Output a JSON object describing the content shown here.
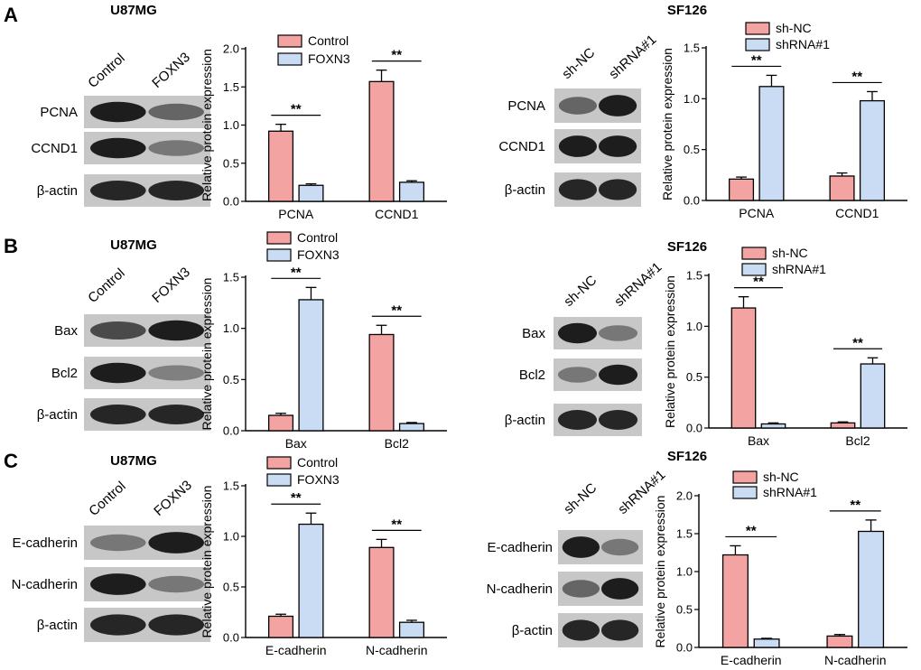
{
  "colors": {
    "series_a": "#f4a3a3",
    "series_b": "#c9dcf3",
    "stroke": "#000000"
  },
  "rows": [
    {
      "letter": "A",
      "left": {
        "cell_line": "U87MG",
        "blot": {
          "lanes": [
            "Control",
            "FOXN3"
          ],
          "proteins": [
            "PCNA",
            "CCND1",
            "β-actin"
          ]
        },
        "chart_data": {
          "type": "bar",
          "categories": [
            "PCNA",
            "CCND1"
          ],
          "series": [
            {
              "name": "Control",
              "values": [
                0.92,
                1.57
              ],
              "errors": [
                0.09,
                0.15
              ]
            },
            {
              "name": "FOXN3",
              "values": [
                0.21,
                0.25
              ],
              "errors": [
                0.02,
                0.02
              ]
            }
          ],
          "significance": [
            "**",
            "**"
          ],
          "ylabel": "Relative protein expression",
          "ylim": [
            0,
            2.0
          ],
          "yticks": [
            "0.0",
            "0.5",
            "1.0",
            "1.5",
            "2.0"
          ]
        }
      },
      "right": {
        "cell_line": "SF126",
        "blot": {
          "lanes": [
            "sh-NC",
            "shRNA#1"
          ],
          "proteins": [
            "PCNA",
            "CCND1",
            "β-actin"
          ]
        },
        "chart_data": {
          "type": "bar",
          "categories": [
            "PCNA",
            "CCND1"
          ],
          "series": [
            {
              "name": "sh-NC",
              "values": [
                0.21,
                0.24
              ],
              "errors": [
                0.02,
                0.03
              ]
            },
            {
              "name": "shRNA#1",
              "values": [
                1.12,
                0.98
              ],
              "errors": [
                0.11,
                0.09
              ]
            }
          ],
          "significance": [
            "**",
            "**"
          ],
          "ylabel": "Relative protein expression",
          "ylim": [
            0,
            1.5
          ],
          "yticks": [
            "0.0",
            "0.5",
            "1.0",
            "1.5"
          ]
        }
      }
    },
    {
      "letter": "B",
      "left": {
        "cell_line": "U87MG",
        "blot": {
          "lanes": [
            "Control",
            "FOXN3"
          ],
          "proteins": [
            "Bax",
            "Bcl2",
            "β-actin"
          ]
        },
        "chart_data": {
          "type": "bar",
          "categories": [
            "Bax",
            "Bcl2"
          ],
          "series": [
            {
              "name": "Control",
              "values": [
                0.15,
                0.94
              ],
              "errors": [
                0.02,
                0.09
              ]
            },
            {
              "name": "FOXN3",
              "values": [
                1.28,
                0.07
              ],
              "errors": [
                0.12,
                0.01
              ]
            }
          ],
          "significance": [
            "**",
            "**"
          ],
          "ylabel": "Relative protein expression",
          "ylim": [
            0,
            1.5
          ],
          "yticks": [
            "0.0",
            "0.5",
            "1.0",
            "1.5"
          ]
        }
      },
      "right": {
        "cell_line": "SF126",
        "blot": {
          "lanes": [
            "sh-NC",
            "shRNA#1"
          ],
          "proteins": [
            "Bax",
            "Bcl2",
            "β-actin"
          ]
        },
        "chart_data": {
          "type": "bar",
          "categories": [
            "Bax",
            "Bcl2"
          ],
          "series": [
            {
              "name": "sh-NC",
              "values": [
                1.18,
                0.05
              ],
              "errors": [
                0.11,
                0.01
              ]
            },
            {
              "name": "shRNA#1",
              "values": [
                0.04,
                0.63
              ],
              "errors": [
                0.01,
                0.06
              ]
            }
          ],
          "significance": [
            "**",
            "**"
          ],
          "ylabel": "Relative protein expression",
          "ylim": [
            0,
            1.5
          ],
          "yticks": [
            "0.0",
            "0.5",
            "1.0",
            "1.5"
          ]
        }
      }
    },
    {
      "letter": "C",
      "left": {
        "cell_line": "U87MG",
        "blot": {
          "lanes": [
            "Control",
            "FOXN3"
          ],
          "proteins": [
            "E-cadherin",
            "N-cadherin",
            "β-actin"
          ]
        },
        "chart_data": {
          "type": "bar",
          "categories": [
            "E-cadherin",
            "N-cadherin"
          ],
          "series": [
            {
              "name": "Control",
              "values": [
                0.21,
                0.89
              ],
              "errors": [
                0.02,
                0.08
              ]
            },
            {
              "name": "FOXN3",
              "values": [
                1.12,
                0.15
              ],
              "errors": [
                0.11,
                0.02
              ]
            }
          ],
          "significance": [
            "**",
            "**"
          ],
          "ylabel": "Relative protein expression",
          "ylim": [
            0,
            1.5
          ],
          "yticks": [
            "0.0",
            "0.5",
            "1.0",
            "1.5"
          ]
        }
      },
      "right": {
        "cell_line": "SF126",
        "blot": {
          "lanes": [
            "sh-NC",
            "shRNA#1"
          ],
          "proteins": [
            "E-cadherin",
            "N-cadherin",
            "β-actin"
          ]
        },
        "chart_data": {
          "type": "bar",
          "categories": [
            "E-cadherin",
            "N-cadherin"
          ],
          "series": [
            {
              "name": "sh-NC",
              "values": [
                1.22,
                0.15
              ],
              "errors": [
                0.12,
                0.02
              ]
            },
            {
              "name": "shRNA#1",
              "values": [
                0.11,
                1.53
              ],
              "errors": [
                0.01,
                0.15
              ]
            }
          ],
          "significance": [
            "**",
            "**"
          ],
          "ylabel": "Relative protein expression",
          "ylim": [
            0,
            2.0
          ],
          "yticks": [
            "0.0",
            "0.5",
            "1.0",
            "1.5",
            "2.0"
          ]
        }
      }
    }
  ]
}
